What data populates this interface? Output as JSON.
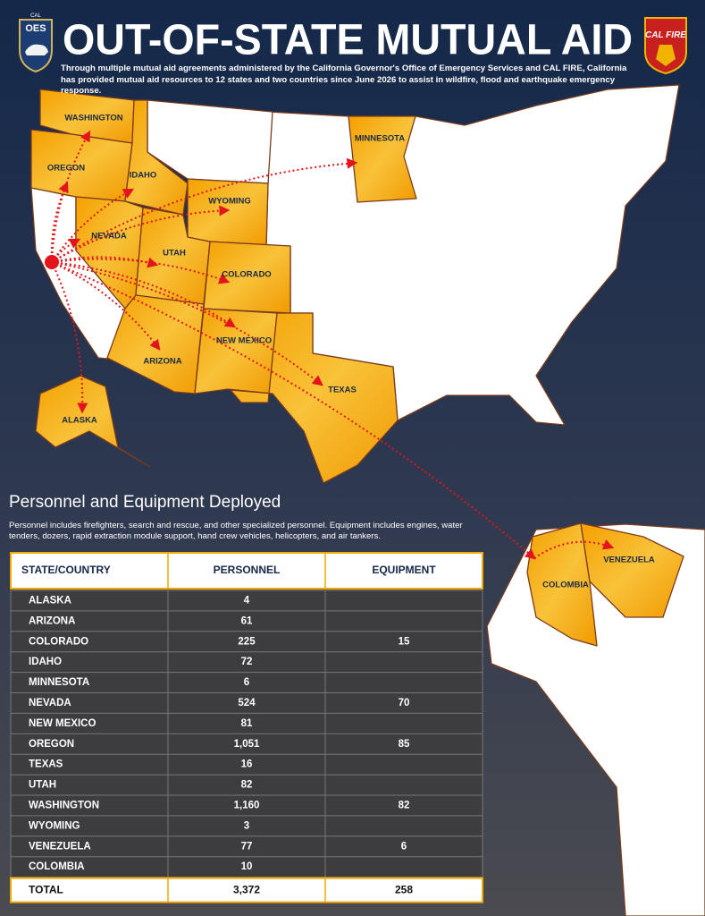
{
  "header": {
    "left_logo": [
      "CAL",
      "OES"
    ],
    "title": "OUT-OF-STATE MUTUAL AID",
    "right_logo": "CAL FIRE",
    "subtitle": "Through multiple mutual aid agreements administered by the California Governor's Office of Emergency Services and CAL FIRE, California has provided mutual aid resources to 12 states and two countries since June 2026 to assist in wildfire, flood and earthquake emergency response."
  },
  "map": {
    "labels": [
      "WASHINGTON",
      "OREGON",
      "IDAHO",
      "NEVADA",
      "UTAH",
      "WYOMING",
      "MINNESOTA",
      "COLORADO",
      "ARIZONA",
      "NEW MEXICO",
      "TEXAS",
      "ALASKA",
      "COLOMBIA",
      "VENEZUELA"
    ]
  },
  "section": {
    "title": "Personnel and Equipment Deployed",
    "description": "Personnel includes firefighters, search and rescue, and other specialized personnel. Equipment includes engines, water tenders, dozers, rapid extraction module support, hand crew vehicles, helicopters, and air tankers."
  },
  "table": {
    "headers": [
      "STATE/COUNTRY",
      "PERSONNEL",
      "EQUIPMENT"
    ],
    "rows": [
      [
        "ALASKA",
        "4",
        null
      ],
      [
        "ARIZONA",
        "61",
        null
      ],
      [
        "COLORADO",
        "225",
        "15"
      ],
      [
        "IDAHO",
        "72",
        null
      ],
      [
        "MINNESOTA",
        "6",
        null
      ],
      [
        "NEVADA",
        "524",
        "70"
      ],
      [
        "NEW MEXICO",
        "81",
        null
      ],
      [
        "OREGON",
        "1,051",
        "85"
      ],
      [
        "TEXAS",
        "16",
        null
      ],
      [
        "UTAH",
        "82",
        null
      ],
      [
        "WASHINGTON",
        "1,160",
        "82"
      ],
      [
        "WYOMING",
        "3",
        null
      ],
      [
        "VENEZUELA",
        "77",
        "6"
      ],
      [
        "COLOMBIA",
        "10",
        null
      ]
    ],
    "total": [
      "TOTAL",
      "3,372",
      "258"
    ]
  }
}
